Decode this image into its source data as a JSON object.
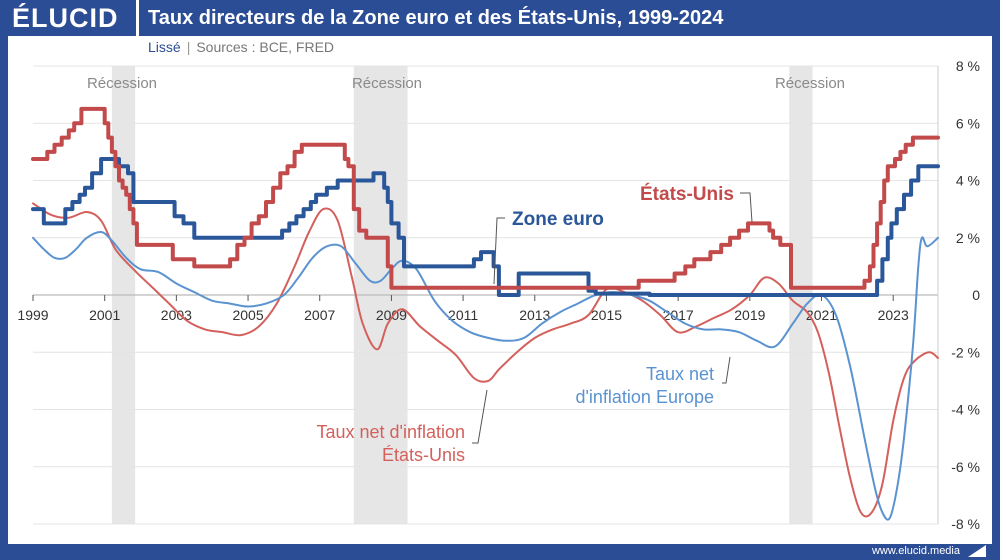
{
  "header": {
    "logo": "ÉLUCID",
    "title": "Taux directeurs de la Zone euro et des États-Unis, 1999-2024"
  },
  "subtitle": {
    "smoothed": "Lissé",
    "separator": "|",
    "sources": "Sources : BCE, FRED"
  },
  "footer": {
    "url": "www.elucid.media"
  },
  "colors": {
    "zone_euro": "#2a5799",
    "etats_unis": "#c24a4a",
    "net_us": "#d4605c",
    "net_eu": "#5a93d0",
    "recession": "#e6e6e6"
  },
  "chart_data": {
    "type": "line",
    "xlim": [
      1999,
      2024.25
    ],
    "ylim": [
      -8,
      8
    ],
    "x_ticks": [
      "1999",
      "2001",
      "2003",
      "2005",
      "2007",
      "2009",
      "2011",
      "2013",
      "2015",
      "2017",
      "2019",
      "2021",
      "2023"
    ],
    "y_ticks": [
      "8 %",
      "6 %",
      "4 %",
      "2 %",
      "0",
      "-2 %",
      "-4 %",
      "-6 %",
      "-8 %"
    ],
    "y_tick_values": [
      8,
      6,
      4,
      2,
      0,
      -2,
      -4,
      -6,
      -8
    ],
    "grid": true,
    "recessions": [
      {
        "label": "Récession",
        "start": 2001.2,
        "end": 2001.85
      },
      {
        "label": "Récession",
        "start": 2007.95,
        "end": 2009.45
      },
      {
        "label": "Récession",
        "start": 2020.1,
        "end": 2020.75
      }
    ],
    "annotations": {
      "etats_unis": "États-Unis",
      "zone_euro": "Zone euro",
      "net_eu_line1": "Taux net",
      "net_eu_line2": "d'inflation Europe",
      "net_us_line1": "Taux net d'inflation",
      "net_us_line2": "États-Unis"
    },
    "series": [
      {
        "name": "États-Unis",
        "key": "etats_unis",
        "step": true,
        "x": [
          1999.0,
          1999.4,
          1999.6,
          1999.8,
          2000.0,
          2000.15,
          2000.35,
          2000.9,
          2001.0,
          2001.1,
          2001.2,
          2001.3,
          2001.4,
          2001.5,
          2001.6,
          2001.7,
          2001.8,
          2001.9,
          2002.9,
          2003.5,
          2004.5,
          2004.7,
          2004.9,
          2005.1,
          2005.3,
          2005.5,
          2005.7,
          2005.9,
          2006.1,
          2006.3,
          2006.5,
          2007.7,
          2007.8,
          2007.95,
          2008.1,
          2008.3,
          2008.9,
          2009.0,
          2015.9,
          2016.9,
          2017.2,
          2017.45,
          2017.9,
          2018.2,
          2018.45,
          2018.7,
          2018.95,
          2019.55,
          2019.65,
          2019.85,
          2020.15,
          2020.25,
          2022.2,
          2022.35,
          2022.45,
          2022.55,
          2022.65,
          2022.75,
          2022.85,
          2023.05,
          2023.2,
          2023.35,
          2023.55,
          2024.25
        ],
        "y": [
          4.75,
          5.0,
          5.25,
          5.5,
          5.75,
          6.0,
          6.5,
          6.5,
          6.0,
          5.5,
          5.0,
          4.5,
          4.0,
          3.75,
          3.5,
          3.0,
          2.5,
          1.75,
          1.25,
          1.0,
          1.25,
          1.75,
          2.0,
          2.5,
          2.75,
          3.25,
          3.75,
          4.25,
          4.5,
          5.0,
          5.25,
          4.75,
          4.5,
          3.0,
          2.25,
          2.0,
          1.0,
          0.25,
          0.5,
          0.75,
          1.0,
          1.25,
          1.5,
          1.75,
          2.0,
          2.25,
          2.5,
          2.25,
          2.0,
          1.75,
          0.25,
          0.25,
          0.5,
          1.0,
          1.75,
          2.5,
          3.25,
          4.0,
          4.5,
          4.75,
          5.0,
          5.25,
          5.5,
          5.5
        ]
      },
      {
        "name": "Zone euro",
        "key": "zone_euro",
        "step": true,
        "x": [
          1999.0,
          1999.3,
          1999.9,
          2000.1,
          2000.3,
          2000.45,
          2000.65,
          2000.9,
          2001.4,
          2001.65,
          2001.8,
          2002.95,
          2003.2,
          2003.5,
          2005.95,
          2006.15,
          2006.35,
          2006.55,
          2006.75,
          2006.9,
          2007.2,
          2007.5,
          2008.5,
          2008.8,
          2008.9,
          2009.0,
          2009.2,
          2009.35,
          2011.3,
          2011.5,
          2011.85,
          2012.0,
          2012.55,
          2014.5,
          2014.7,
          2016.2,
          2022.55,
          2022.7,
          2022.85,
          2022.95,
          2023.1,
          2023.3,
          2023.5,
          2023.7,
          2024.25
        ],
        "y": [
          3.0,
          2.5,
          3.0,
          3.25,
          3.5,
          3.75,
          4.25,
          4.75,
          4.5,
          4.25,
          3.25,
          2.75,
          2.5,
          2.0,
          2.25,
          2.5,
          2.75,
          3.0,
          3.25,
          3.5,
          3.75,
          4.0,
          4.25,
          3.75,
          3.25,
          2.5,
          2.0,
          1.0,
          1.25,
          1.5,
          1.0,
          0.0,
          0.75,
          0.15,
          0.05,
          0.0,
          0.5,
          1.25,
          2.0,
          2.5,
          3.0,
          3.5,
          4.0,
          4.5,
          4.5
        ]
      },
      {
        "name": "Taux net d'inflation États-Unis",
        "key": "net_us",
        "step": false,
        "x": [
          1999.0,
          1999.5,
          2000.0,
          2000.5,
          2000.9,
          2001.3,
          2001.8,
          2002.3,
          2002.8,
          2003.3,
          2003.8,
          2004.3,
          2004.8,
          2005.3,
          2005.8,
          2006.3,
          2006.7,
          2007.1,
          2007.5,
          2007.9,
          2008.2,
          2008.6,
          2008.9,
          2009.3,
          2009.8,
          2010.3,
          2010.8,
          2011.3,
          2011.7,
          2012.0,
          2012.5,
          2013.0,
          2013.5,
          2014.0,
          2014.5,
          2015.0,
          2015.5,
          2016.0,
          2016.5,
          2017.0,
          2017.5,
          2018.0,
          2018.5,
          2019.0,
          2019.4,
          2019.8,
          2020.2,
          2020.6,
          2020.9,
          2021.2,
          2021.5,
          2021.8,
          2022.1,
          2022.4,
          2022.7,
          2023.0,
          2023.3,
          2023.6,
          2024.0,
          2024.25
        ],
        "y": [
          3.2,
          2.8,
          2.7,
          2.9,
          2.6,
          1.6,
          0.9,
          0.3,
          -0.3,
          -0.9,
          -1.2,
          -1.3,
          -1.4,
          -1.1,
          -0.3,
          1.0,
          2.2,
          3.0,
          2.6,
          0.6,
          -1.0,
          -1.9,
          -1.0,
          -0.5,
          -1.1,
          -1.6,
          -2.1,
          -2.9,
          -3.0,
          -2.6,
          -2.0,
          -1.5,
          -1.2,
          -1.0,
          -0.7,
          0.2,
          0.1,
          -0.2,
          -0.7,
          -1.3,
          -1.1,
          -0.8,
          -0.5,
          0.0,
          0.6,
          0.4,
          -0.2,
          -0.6,
          -1.3,
          -2.7,
          -4.6,
          -6.4,
          -7.6,
          -7.6,
          -6.6,
          -4.4,
          -2.9,
          -2.3,
          -2.0,
          -2.2
        ]
      },
      {
        "name": "Taux net d'inflation Europe",
        "key": "net_eu",
        "step": false,
        "x": [
          1999.0,
          1999.3,
          1999.6,
          1999.9,
          2000.2,
          2000.5,
          2000.9,
          2001.2,
          2001.6,
          2002.0,
          2002.5,
          2003.0,
          2003.5,
          2004.0,
          2004.5,
          2005.0,
          2005.5,
          2006.0,
          2006.4,
          2006.8,
          2007.2,
          2007.6,
          2008.0,
          2008.4,
          2008.7,
          2009.0,
          2009.3,
          2009.7,
          2010.2,
          2010.7,
          2011.2,
          2011.7,
          2012.2,
          2012.7,
          2013.2,
          2013.7,
          2014.2,
          2014.7,
          2015.2,
          2015.7,
          2016.2,
          2016.7,
          2017.2,
          2017.7,
          2018.2,
          2018.7,
          2019.2,
          2019.7,
          2020.2,
          2020.6,
          2021.0,
          2021.4,
          2021.8,
          2022.2,
          2022.5,
          2022.7,
          2022.9,
          2023.1,
          2023.3,
          2023.55,
          2023.7,
          2023.8,
          2023.95,
          2024.25
        ],
        "y": [
          2.0,
          1.6,
          1.3,
          1.3,
          1.6,
          2.0,
          2.2,
          1.9,
          1.3,
          0.9,
          0.8,
          0.4,
          0.1,
          -0.2,
          -0.3,
          -0.4,
          -0.3,
          0.0,
          0.6,
          1.3,
          1.7,
          1.7,
          1.1,
          0.5,
          0.5,
          0.9,
          1.2,
          0.9,
          -0.2,
          -0.9,
          -1.3,
          -1.5,
          -1.6,
          -1.5,
          -1.0,
          -0.6,
          -0.3,
          0.0,
          0.1,
          0.0,
          -0.2,
          -0.6,
          -1.0,
          -1.2,
          -1.2,
          -1.3,
          -1.6,
          -1.8,
          -1.0,
          -0.3,
          0.0,
          -0.7,
          -2.5,
          -5.0,
          -6.8,
          -7.6,
          -7.8,
          -6.8,
          -5.0,
          -1.8,
          1.0,
          2.0,
          1.7,
          2.0
        ]
      }
    ]
  }
}
